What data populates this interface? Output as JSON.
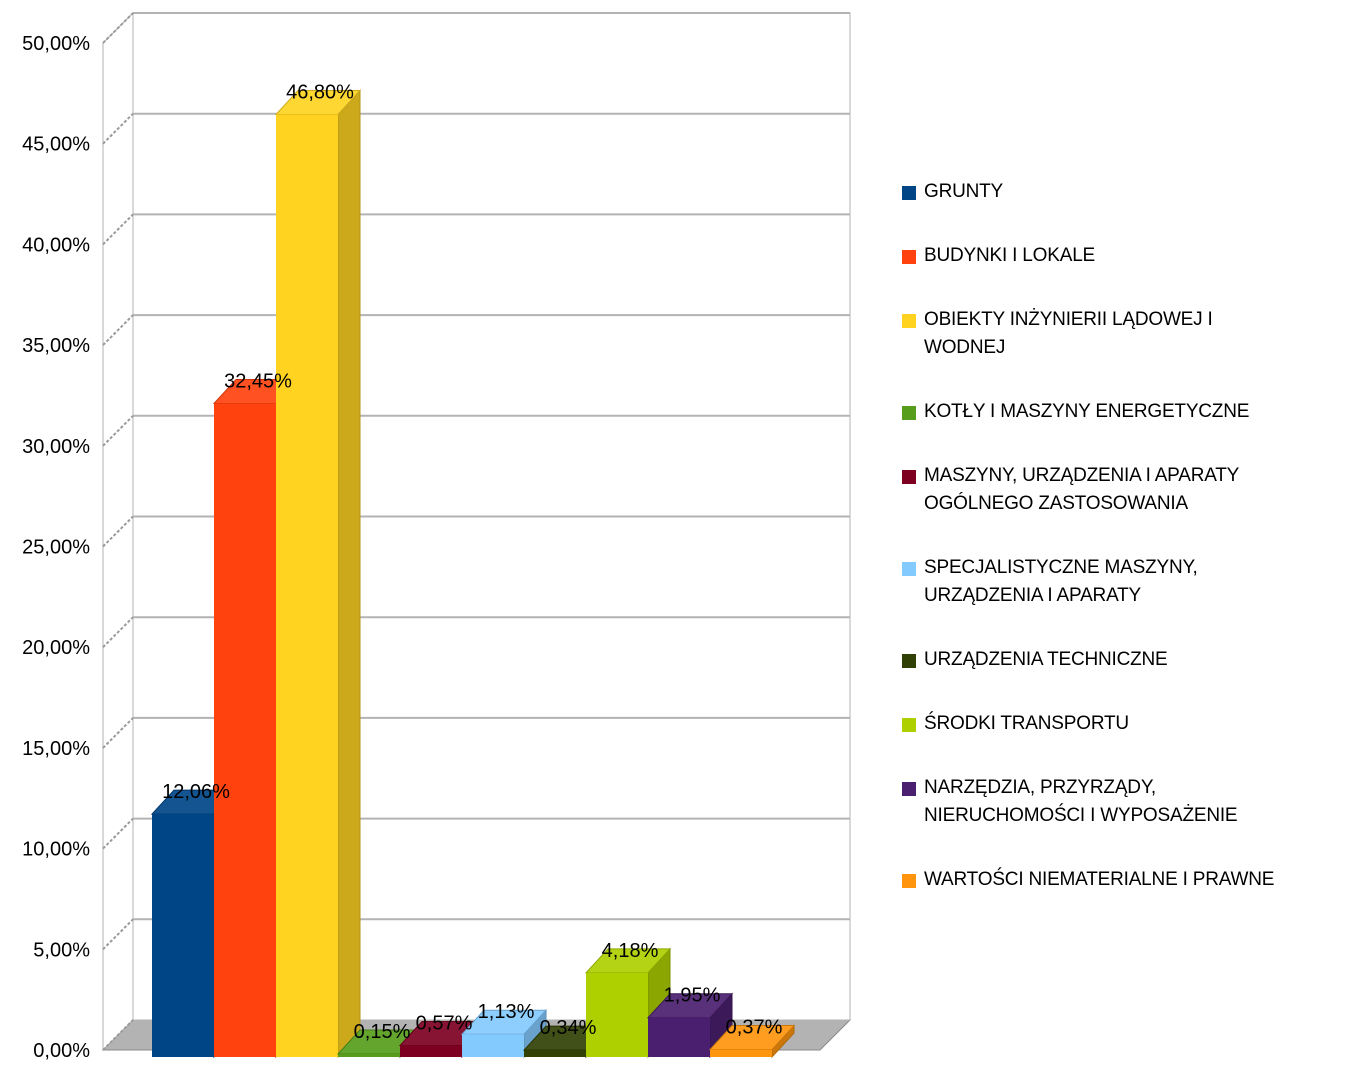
{
  "chart_data": {
    "type": "bar",
    "categories": [
      "GRUNTY",
      "BUDYNKI I LOKALE",
      "OBIEKTY INŻYNIERII LĄDOWEJ I WODNEJ",
      "KOTŁY I MASZYNY ENERGETYCZNE",
      "MASZYNY, URZĄDZENIA I  APARATY OGÓLNEGO ZASTOSOWANIA",
      "SPECJALISTYCZNE MASZYNY, URZĄDZENIA I  APARATY",
      "URZĄDZENIA TECHNICZNE",
      "ŚRODKI TRANSPORTU",
      "NARZĘDZIA, PRZYRZĄDY, NIERUCHOMOŚCI I  WYPOSAŻENIE",
      "WARTOŚCI NIEMATERIALNE I  PRAWNE"
    ],
    "values": [
      12.06,
      32.45,
      46.8,
      0.15,
      0.57,
      1.13,
      0.34,
      4.18,
      1.95,
      0.37
    ],
    "data_labels": [
      "12,06%",
      "32,45%",
      "46,80%",
      "0,15%",
      "0,57%",
      "1,13%",
      "0,34%",
      "4,18%",
      "1,95%",
      "0,37%"
    ],
    "colors": [
      "#004586",
      "#ff420e",
      "#ffd320",
      "#579d1c",
      "#7e0021",
      "#83caff",
      "#314004",
      "#aecf00",
      "#4b1f6f",
      "#ff950e"
    ],
    "ylim": [
      0,
      50
    ],
    "y_ticks": [
      "0,00%",
      "5,00%",
      "10,00%",
      "15,00%",
      "20,00%",
      "25,00%",
      "30,00%",
      "35,00%",
      "40,00%",
      "45,00%",
      "50,00%"
    ],
    "grid": true,
    "three_d": true,
    "legend_position": "right"
  },
  "legend": {
    "items": [
      [
        "GRUNTY"
      ],
      [
        "BUDYNKI I LOKALE"
      ],
      [
        "OBIEKTY INŻYNIERII LĄDOWEJ I",
        "WODNEJ"
      ],
      [
        "KOTŁY I MASZYNY ENERGETYCZNE"
      ],
      [
        "MASZYNY, URZĄDZENIA I  APARATY",
        "OGÓLNEGO ZASTOSOWANIA"
      ],
      [
        "SPECJALISTYCZNE MASZYNY,",
        "URZĄDZENIA I  APARATY"
      ],
      [
        "URZĄDZENIA TECHNICZNE"
      ],
      [
        "ŚRODKI TRANSPORTU"
      ],
      [
        "NARZĘDZIA, PRZYRZĄDY,",
        "NIERUCHOMOŚCI I  WYPOSAŻENIE"
      ],
      [
        "WARTOŚCI NIEMATERIALNE I  PRAWNE"
      ]
    ]
  }
}
